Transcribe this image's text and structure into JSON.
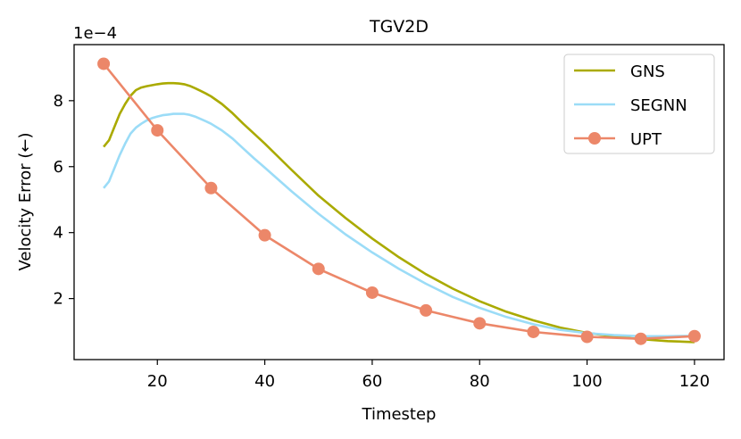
{
  "chart_data": {
    "type": "line",
    "title": "TGV2D",
    "xlabel": "Timestep",
    "ylabel": "Velocity Error (←)",
    "y_scale_label": "1e−4",
    "xlim": [
      4.5,
      125.5
    ],
    "ylim": [
      0.15,
      9.7
    ],
    "xticks": [
      20,
      40,
      60,
      80,
      100,
      120
    ],
    "yticks": [
      2,
      4,
      6,
      8
    ],
    "legend_position": "top-right",
    "series": [
      {
        "name": "GNS",
        "color": "#aaaa00",
        "marker": false,
        "x": [
          10,
          11,
          12,
          13,
          14,
          15,
          16,
          17,
          18,
          19,
          20,
          21,
          22,
          23,
          24,
          25,
          26,
          27,
          28,
          29,
          30,
          32,
          34,
          36,
          38,
          40,
          45,
          50,
          55,
          60,
          65,
          70,
          75,
          80,
          85,
          90,
          95,
          100,
          105,
          110,
          115,
          120
        ],
        "y": [
          6.6,
          6.8,
          7.2,
          7.6,
          7.9,
          8.15,
          8.32,
          8.4,
          8.44,
          8.47,
          8.5,
          8.52,
          8.53,
          8.53,
          8.52,
          8.5,
          8.45,
          8.38,
          8.3,
          8.22,
          8.13,
          7.9,
          7.62,
          7.3,
          7.0,
          6.7,
          5.9,
          5.12,
          4.45,
          3.82,
          3.25,
          2.74,
          2.3,
          1.92,
          1.6,
          1.34,
          1.12,
          0.96,
          0.85,
          0.77,
          0.71,
          0.68
        ]
      },
      {
        "name": "SEGNN",
        "color": "#9bdcf7",
        "marker": false,
        "x": [
          10,
          11,
          12,
          13,
          14,
          15,
          16,
          17,
          18,
          19,
          20,
          21,
          22,
          23,
          24,
          25,
          26,
          27,
          28,
          29,
          30,
          32,
          34,
          36,
          38,
          40,
          45,
          50,
          55,
          60,
          65,
          70,
          75,
          80,
          85,
          90,
          95,
          100,
          105,
          110,
          115,
          120
        ],
        "y": [
          5.35,
          5.55,
          5.95,
          6.35,
          6.7,
          7.0,
          7.18,
          7.3,
          7.4,
          7.47,
          7.52,
          7.56,
          7.58,
          7.6,
          7.6,
          7.6,
          7.57,
          7.52,
          7.45,
          7.38,
          7.3,
          7.1,
          6.85,
          6.55,
          6.25,
          5.97,
          5.25,
          4.57,
          3.95,
          3.4,
          2.9,
          2.45,
          2.05,
          1.72,
          1.44,
          1.22,
          1.05,
          0.95,
          0.89,
          0.86,
          0.86,
          0.87
        ]
      },
      {
        "name": "UPT",
        "color": "#ec8769",
        "marker": true,
        "x": [
          10,
          20,
          30,
          40,
          50,
          60,
          70,
          80,
          90,
          100,
          110,
          120
        ],
        "y": [
          9.12,
          7.1,
          5.35,
          3.92,
          2.9,
          2.18,
          1.64,
          1.25,
          0.99,
          0.84,
          0.78,
          0.86
        ]
      }
    ]
  }
}
